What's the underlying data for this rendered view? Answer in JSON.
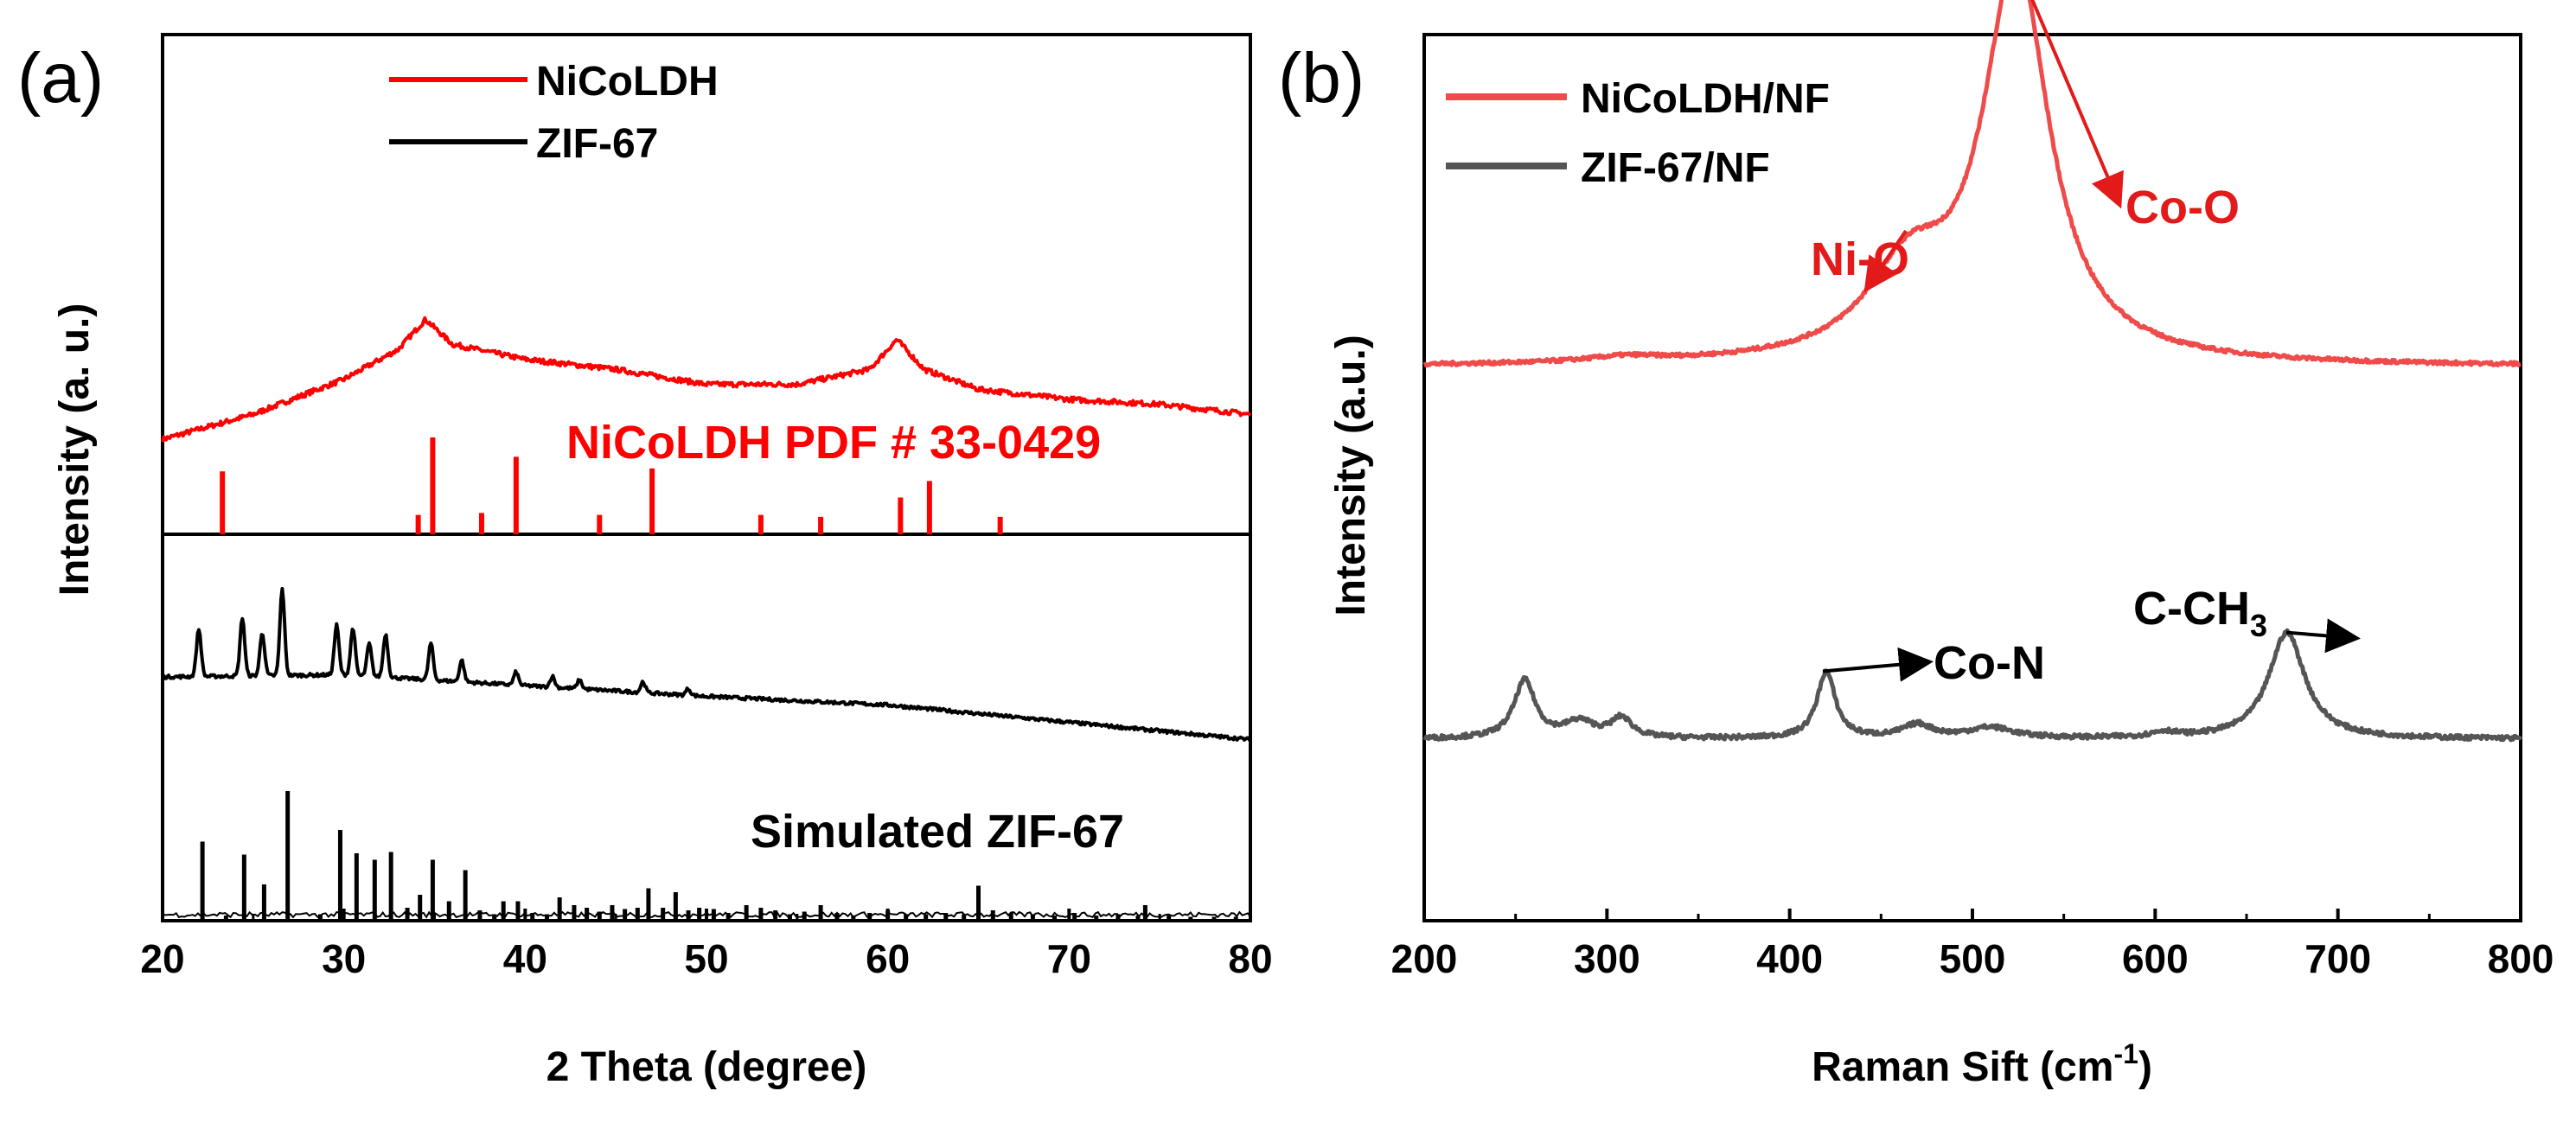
{
  "colors": {
    "nicoldh_xrd": "#ff0000",
    "zif67_xrd": "#000000",
    "nicoldh_raman": "#ef4b4b",
    "zif67_raman": "#555555",
    "arrow_nicoldh": "#e31a1a",
    "arrow_zif67": "#000000"
  },
  "chart_data": [
    {
      "panel": "(a)",
      "type": "line",
      "xlabel": "2 Theta (degree)",
      "ylabel": "Intensity (a. u.)",
      "xlim": [
        20,
        80
      ],
      "xticks": [
        "20",
        "30",
        "40",
        "50",
        "60",
        "70",
        "80"
      ],
      "legend": [
        {
          "name": "NiCoLDH",
          "color": "#ff0000"
        },
        {
          "name": "ZIF-67",
          "color": "#000000"
        }
      ],
      "annotations": {
        "pdf_label": "NiCoLDH PDF # 33-0429",
        "sim_label": "Simulated ZIF-67"
      },
      "series": [
        {
          "name": "NiCoLDH",
          "color": "#ff0000",
          "baseline": [
            [
              20,
              0.19
            ],
            [
              25,
              0.24
            ],
            [
              30,
              0.31
            ],
            [
              33,
              0.37
            ],
            [
              34.5,
              0.43
            ],
            [
              36,
              0.38
            ],
            [
              40,
              0.35
            ],
            [
              45,
              0.33
            ],
            [
              50,
              0.3
            ],
            [
              55,
              0.3
            ],
            [
              59,
              0.33
            ],
            [
              60.5,
              0.39
            ],
            [
              62,
              0.33
            ],
            [
              65,
              0.29
            ],
            [
              70,
              0.27
            ],
            [
              75,
              0.26
            ],
            [
              80,
              0.24
            ]
          ],
          "noise": 0.01
        },
        {
          "name": "ZIF-67",
          "color": "#000000",
          "baseline": [
            [
              20,
              0.3
            ],
            [
              30,
              0.31
            ],
            [
              40,
              0.26
            ],
            [
              50,
              0.21
            ],
            [
              60,
              0.17
            ],
            [
              70,
              0.09
            ],
            [
              80,
              0.01
            ]
          ],
          "peaks": [
            [
              22.0,
              0.22
            ],
            [
              24.4,
              0.27
            ],
            [
              25.5,
              0.2
            ],
            [
              26.6,
              0.4
            ],
            [
              29.6,
              0.23
            ],
            [
              30.5,
              0.22
            ],
            [
              31.4,
              0.15
            ],
            [
              32.3,
              0.2
            ],
            [
              34.8,
              0.17
            ],
            [
              36.5,
              0.1
            ],
            [
              39.5,
              0.06
            ],
            [
              41.5,
              0.05
            ],
            [
              43.0,
              0.04
            ],
            [
              46.5,
              0.05
            ],
            [
              49.0,
              0.03
            ]
          ],
          "noise": 0.015
        }
      ],
      "reference_lines": [
        {
          "name": "NiCoLDH PDF # 33-0429",
          "color": "#ff0000",
          "x": [
            23.3,
            34.1,
            34.9,
            37.6,
            39.5,
            44.1,
            47.0,
            53.0,
            56.3,
            60.7,
            62.3,
            66.2
          ],
          "intensity": [
            0.65,
            0.2,
            1.0,
            0.22,
            0.8,
            0.2,
            0.68,
            0.2,
            0.18,
            0.38,
            0.55,
            0.18
          ]
        },
        {
          "name": "Simulated ZIF-67",
          "color": "#000000",
          "x": [
            22.2,
            23.5,
            24.5,
            25.6,
            26.9,
            28.7,
            29.8,
            30.7,
            31.7,
            32.6,
            33.5,
            34.2,
            34.9,
            35.8,
            36.7,
            37.5,
            38.3,
            38.8,
            39.6,
            40.4,
            41.2,
            41.9,
            42.7,
            43.4,
            44.1,
            44.8,
            45.5,
            46.2,
            46.8,
            47.6,
            48.3,
            49.0,
            49.6,
            50.4,
            51.2,
            52.2,
            53.0,
            53.8,
            54.6,
            55.4,
            56.3,
            57.2,
            58.1,
            59.0,
            60.0,
            61.0,
            62.1,
            63.2,
            64.2,
            65.0,
            65.8,
            66.8,
            68.0,
            69.2,
            70.3,
            71.5,
            72.7,
            73.8,
            74.2,
            75.5,
            76.7,
            78.0,
            79.2
          ],
          "intensity": [
            0.61,
            0.04,
            0.51,
            0.28,
            1.0,
            0.05,
            0.7,
            0.52,
            0.47,
            0.53,
            0.1,
            0.2,
            0.47,
            0.15,
            0.39,
            0.08,
            0.05,
            0.15,
            0.15,
            0.06,
            0.05,
            0.18,
            0.12,
            0.1,
            0.07,
            0.12,
            0.09,
            0.1,
            0.25,
            0.1,
            0.22,
            0.08,
            0.1,
            0.09,
            0.06,
            0.12,
            0.1,
            0.08,
            0.05,
            0.07,
            0.12,
            0.06,
            0.04,
            0.06,
            0.08,
            0.05,
            0.05,
            0.06,
            0.05,
            0.27,
            0.08,
            0.06,
            0.05,
            0.04,
            0.06,
            0.04,
            0.05,
            0.04,
            0.12,
            0.04,
            0.03,
            0.03,
            0.03
          ]
        }
      ]
    },
    {
      "panel": "(b)",
      "type": "line",
      "xlabel": "Raman Sift (cm",
      "xlabel_sup": "-1",
      "xlabel_end": ")",
      "ylabel": "Intensity (a.u.)",
      "xlim": [
        200,
        800
      ],
      "xticks": [
        "200",
        "300",
        "400",
        "500",
        "600",
        "700",
        "800"
      ],
      "legend": [
        {
          "name": "NiCoLDH/NF",
          "color": "#ef4b4b"
        },
        {
          "name": "ZIF-67/NF",
          "color": "#555555"
        }
      ],
      "series": [
        {
          "name": "NiCoLDH/NF",
          "color": "#ef4b4b",
          "baseline_level": 0.625,
          "peaks": [
            [
              310,
              0.006,
              25
            ],
            [
              465,
              0.095,
              28
            ],
            [
              524,
              0.445,
              22
            ]
          ],
          "noise": 0.004
        },
        {
          "name": "ZIF-67/NF",
          "color": "#555555",
          "baseline_level": 0.205,
          "peaks": [
            [
              255,
              0.065,
              7
            ],
            [
              285,
              0.018,
              10
            ],
            [
              308,
              0.022,
              7
            ],
            [
              420,
              0.075,
              6
            ],
            [
              470,
              0.015,
              10
            ],
            [
              510,
              0.012,
              15
            ],
            [
              605,
              0.006,
              8
            ],
            [
              672,
              0.12,
              12
            ]
          ],
          "noise": 0.005
        }
      ],
      "annotations": [
        {
          "label": "Ni-O",
          "sub": "",
          "color": "#e31a1a",
          "peak_x": 468
        },
        {
          "label": "Co-O",
          "sub": "",
          "color": "#e31a1a",
          "peak_x": 524
        },
        {
          "label": "Co-N",
          "sub": "",
          "color": "#000000",
          "peak_x": 420
        },
        {
          "label": "C-CH",
          "sub": "3",
          "color": "#000000",
          "peak_x": 672
        }
      ]
    }
  ]
}
